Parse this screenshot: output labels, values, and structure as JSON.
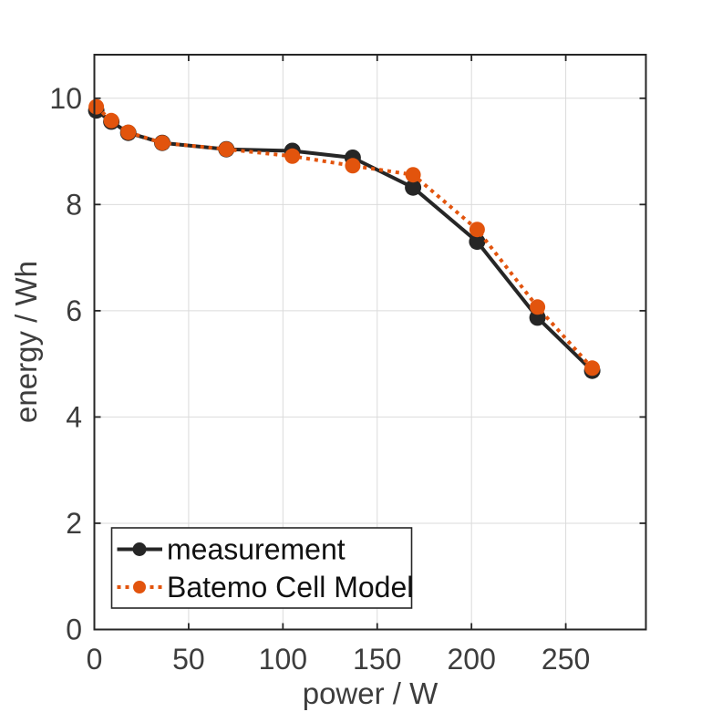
{
  "figure": {
    "background": "#ffffff"
  },
  "chart_data": {
    "type": "line",
    "title": "",
    "xlabel": "power / W",
    "ylabel": "energy / Wh",
    "xlim": [
      0,
      292.5
    ],
    "ylim": [
      0,
      10.82
    ],
    "x_ticks": [
      0,
      50,
      100,
      150,
      200,
      250
    ],
    "y_ticks": [
      0,
      2,
      4,
      6,
      8,
      10
    ],
    "grid": true,
    "grid_color": "#DBDBDB",
    "axis_color": "#262626",
    "tick_label_color": "#3D3D3D",
    "axis_label_color": "#3D3D3D",
    "x": [
      1,
      9,
      18,
      36,
      70,
      105,
      137,
      169,
      203,
      235,
      264
    ],
    "series": [
      {
        "name": "measurement",
        "color": "#262626",
        "style": "solid",
        "marker": "circle",
        "marker_size": 9,
        "line_width": 4,
        "values": [
          9.77,
          9.56,
          9.35,
          9.16,
          9.04,
          9.01,
          8.88,
          8.32,
          7.3,
          5.87,
          4.87
        ]
      },
      {
        "name": "Batemo Cell Model",
        "color": "#E2540D",
        "style": "dotted",
        "marker": "circle",
        "marker_size": 8.5,
        "line_width": 4,
        "values": [
          9.84,
          9.58,
          9.36,
          9.16,
          9.04,
          8.91,
          8.73,
          8.56,
          7.53,
          6.07,
          4.92
        ]
      }
    ],
    "legend_position": "bottom-left"
  },
  "legend": {
    "text_color": "#111111",
    "border_color": "#262626",
    "items": [
      {
        "label": "measurement"
      },
      {
        "label": "Batemo Cell Model"
      }
    ]
  }
}
